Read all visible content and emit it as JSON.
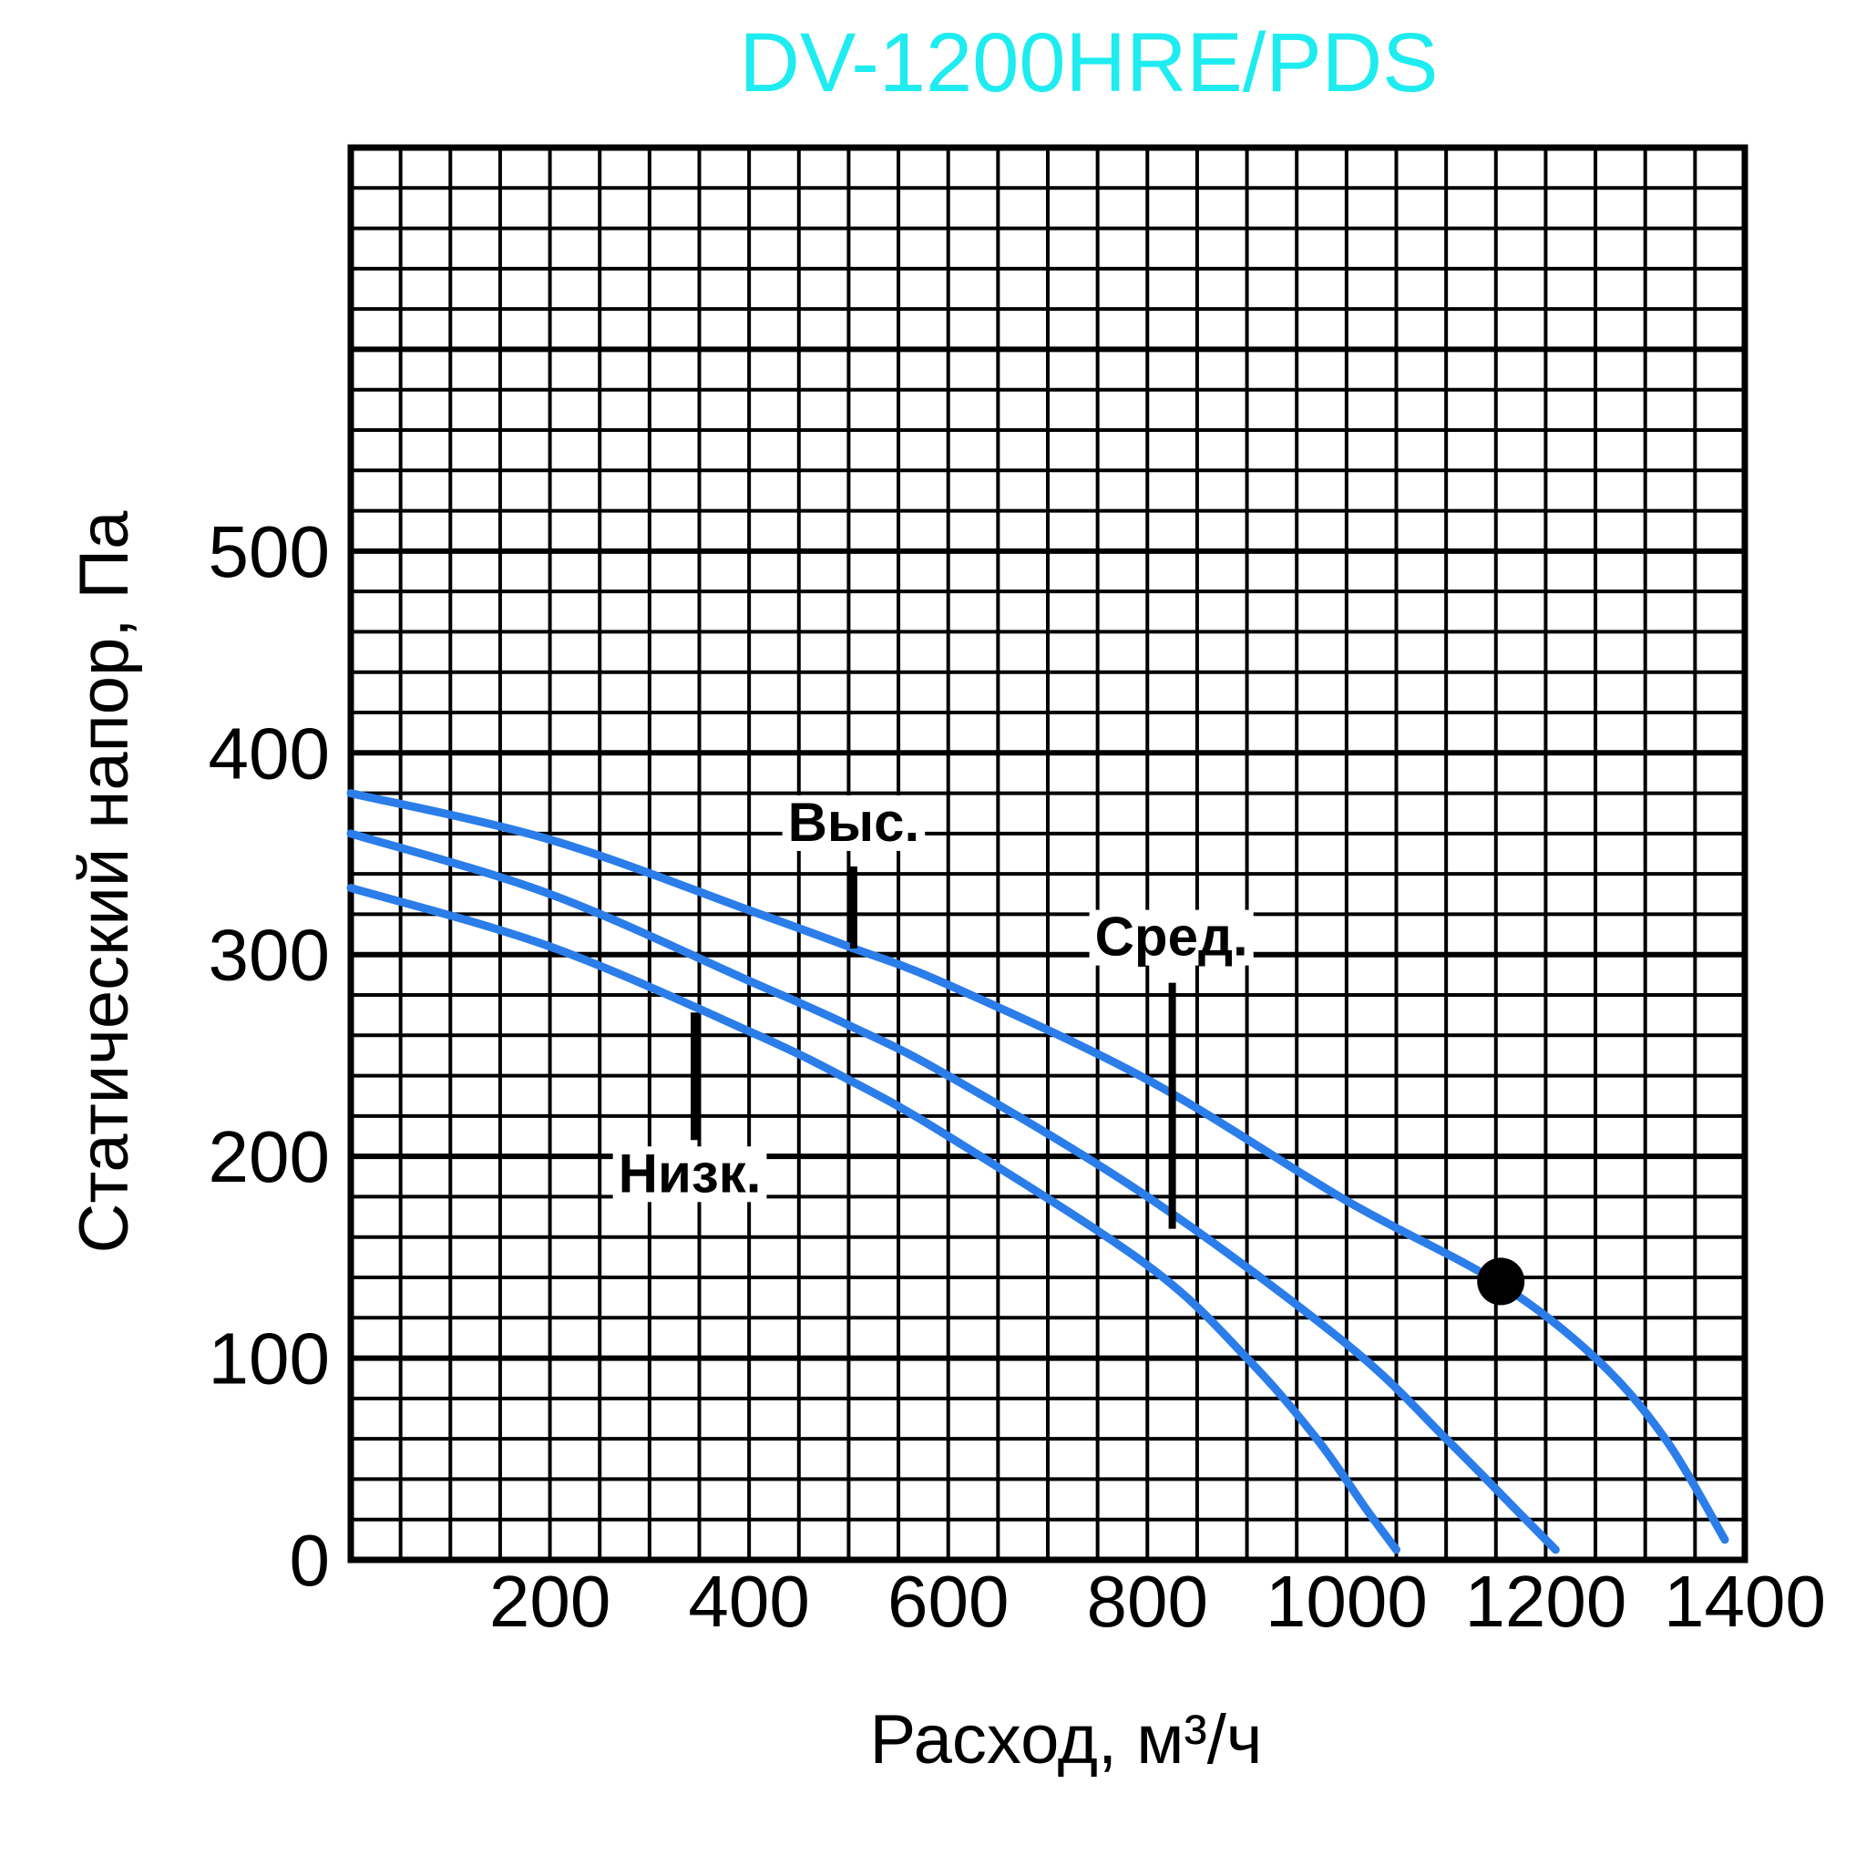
{
  "chart_data": {
    "type": "line",
    "title": "DV-1200HRE/PDS",
    "xlabel": "Расход, м³/ч",
    "ylabel": "Статический напор, Па",
    "xlim": [
      0,
      1400
    ],
    "ylim": [
      0,
      700
    ],
    "x_ticks": [
      {
        "value": 200,
        "label": "200"
      },
      {
        "value": 400,
        "label": "400"
      },
      {
        "value": 600,
        "label": "600"
      },
      {
        "value": 800,
        "label": "800"
      },
      {
        "value": 1000,
        "label": "1000"
      },
      {
        "value": 1200,
        "label": "1200"
      },
      {
        "value": 1400,
        "label": "1400"
      }
    ],
    "y_ticks": [
      {
        "value": 0,
        "label": "0"
      },
      {
        "value": 100,
        "label": "100"
      },
      {
        "value": 200,
        "label": "200"
      },
      {
        "value": 300,
        "label": "300"
      },
      {
        "value": 400,
        "label": "400"
      },
      {
        "value": 500,
        "label": "500"
      }
    ],
    "grid": true,
    "grid_minor_x_step": 50,
    "grid_minor_y_step": 20,
    "grid_major_y_step": 100,
    "series": [
      {
        "name": "Выс.",
        "x": [
          0,
          200,
          400,
          500,
          600,
          800,
          1000,
          1150,
          1250,
          1320,
          1380
        ],
        "y": [
          380,
          357,
          322,
          304,
          285,
          238,
          178,
          138,
          100,
          60,
          10
        ]
      },
      {
        "name": "Сред.",
        "x": [
          0,
          200,
          400,
          500,
          600,
          800,
          1000,
          1100,
          1170,
          1210
        ],
        "y": [
          360,
          330,
          287,
          265,
          240,
          180,
          107,
          60,
          25,
          5
        ]
      },
      {
        "name": "Низк.",
        "x": [
          0,
          200,
          400,
          500,
          600,
          800,
          900,
          970,
          1020,
          1050
        ],
        "y": [
          333,
          304,
          262,
          238,
          210,
          146,
          100,
          60,
          25,
          5
        ]
      }
    ],
    "line_color": "#2b7de9",
    "point": {
      "x": 1155,
      "y": 138
    },
    "annotations": [
      {
        "text": "Выс.",
        "series": "Выс.",
        "x": 505
      },
      {
        "text": "Сред.",
        "series": "Сред.",
        "x": 825
      },
      {
        "text": "Низк.",
        "series": "Низк.",
        "x": 345
      }
    ],
    "title_color": "#1eecf0"
  }
}
